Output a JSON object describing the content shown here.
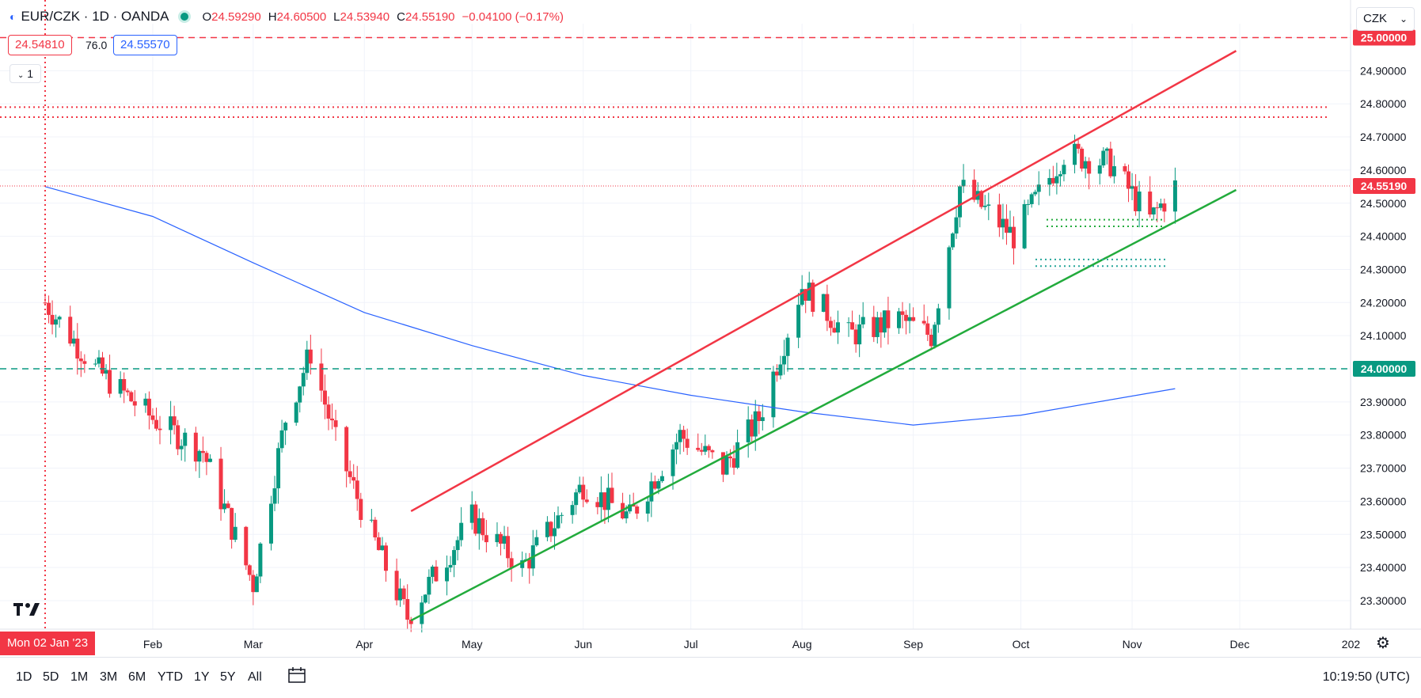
{
  "header": {
    "symbol": "EUR/CZK · 1D · OANDA",
    "open_label": "O",
    "open": "24.59290",
    "high_label": "H",
    "high": "24.60500",
    "low_label": "L",
    "low": "24.53940",
    "close_label": "C",
    "close": "24.55190",
    "change": "−0.04100 (−0.17%)"
  },
  "trade": {
    "sell": "24.54810",
    "spread": "76.0",
    "buy": "24.55570"
  },
  "legend_toggle": "1",
  "currency_selector": "CZK",
  "colors": {
    "up": "#089981",
    "down": "#f23645",
    "ma": "#2962ff",
    "channel_top": "#f23645",
    "channel_bottom": "#22ab3c",
    "grid": "#f0f3fa"
  },
  "chart_data": {
    "type": "candlestick",
    "title": "EUR/CZK · 1D · OANDA",
    "timeframe": "1D",
    "y_range": [
      23.22,
      25.05
    ],
    "y_ticks": [
      "25.00000",
      "24.90000",
      "24.80000",
      "24.70000",
      "24.60000",
      "24.50000",
      "24.40000",
      "24.30000",
      "24.20000",
      "24.10000",
      "24.00000",
      "23.90000",
      "23.80000",
      "23.70000",
      "23.60000",
      "23.50000",
      "23.40000",
      "23.30000"
    ],
    "x_labels": [
      "Feb",
      "Mar",
      "Apr",
      "May",
      "Jun",
      "Jul",
      "Aug",
      "Sep",
      "Oct",
      "Nov",
      "Dec",
      "202"
    ],
    "crosshair_date": "Mon 02 Jan '23",
    "current_price": "24.55190",
    "level_labels": {
      "resistance": "25.00000",
      "support": "24.00000"
    },
    "horizontal_lines": [
      {
        "price": 25.0,
        "style": "dashed",
        "color": "#f23645"
      },
      {
        "price": 24.79,
        "style": "dotted",
        "color": "#f23645"
      },
      {
        "price": 24.76,
        "style": "dotted",
        "color": "#f23645"
      },
      {
        "price": 24.0,
        "style": "dashed",
        "color": "#089981"
      }
    ],
    "channel": {
      "upper": {
        "from": [
          "2023-04-14",
          23.57
        ],
        "to": [
          "2023-11-30",
          24.96
        ],
        "color": "#f23645"
      },
      "lower": {
        "from": [
          "2023-04-14",
          23.24
        ],
        "to": [
          "2023-11-30",
          24.54
        ],
        "color": "#22ab3c"
      }
    },
    "close_series_approx": [
      {
        "date": "2023-01-02",
        "close": 24.2
      },
      {
        "date": "2023-01-16",
        "close": 24.0
      },
      {
        "date": "2023-02-01",
        "close": 23.85
      },
      {
        "date": "2023-02-15",
        "close": 23.75
      },
      {
        "date": "2023-03-01",
        "close": 23.35
      },
      {
        "date": "2023-03-10",
        "close": 23.85
      },
      {
        "date": "2023-03-17",
        "close": 24.05
      },
      {
        "date": "2023-03-24",
        "close": 23.78
      },
      {
        "date": "2023-04-03",
        "close": 23.5
      },
      {
        "date": "2023-04-13",
        "close": 23.25
      },
      {
        "date": "2023-05-01",
        "close": 23.55
      },
      {
        "date": "2023-05-15",
        "close": 23.4
      },
      {
        "date": "2023-06-01",
        "close": 23.65
      },
      {
        "date": "2023-06-14",
        "close": 23.55
      },
      {
        "date": "2023-06-28",
        "close": 23.8
      },
      {
        "date": "2023-07-10",
        "close": 23.7
      },
      {
        "date": "2023-07-20",
        "close": 23.85
      },
      {
        "date": "2023-08-01",
        "close": 24.25
      },
      {
        "date": "2023-08-14",
        "close": 24.1
      },
      {
        "date": "2023-08-28",
        "close": 24.15
      },
      {
        "date": "2023-09-06",
        "close": 24.1
      },
      {
        "date": "2023-09-14",
        "close": 24.55
      },
      {
        "date": "2023-09-29",
        "close": 24.4
      },
      {
        "date": "2023-10-13",
        "close": 24.65
      },
      {
        "date": "2023-10-26",
        "close": 24.62
      },
      {
        "date": "2023-11-06",
        "close": 24.45
      },
      {
        "date": "2023-11-13",
        "close": 24.55
      }
    ],
    "moving_average": [
      {
        "date": "2023-01-02",
        "value": 24.55
      },
      {
        "date": "2023-02-01",
        "value": 24.46
      },
      {
        "date": "2023-03-01",
        "value": 24.32
      },
      {
        "date": "2023-04-01",
        "value": 24.17
      },
      {
        "date": "2023-05-01",
        "value": 24.07
      },
      {
        "date": "2023-06-01",
        "value": 23.98
      },
      {
        "date": "2023-07-01",
        "value": 23.92
      },
      {
        "date": "2023-08-01",
        "value": 23.87
      },
      {
        "date": "2023-09-01",
        "value": 23.83
      },
      {
        "date": "2023-10-01",
        "value": 23.86
      },
      {
        "date": "2023-11-13",
        "value": 23.94
      }
    ]
  },
  "bottom_bar": {
    "ranges": [
      "1D",
      "5D",
      "1M",
      "3M",
      "6M",
      "YTD",
      "1Y",
      "5Y",
      "All"
    ],
    "clock": "10:19:50 (UTC)"
  }
}
